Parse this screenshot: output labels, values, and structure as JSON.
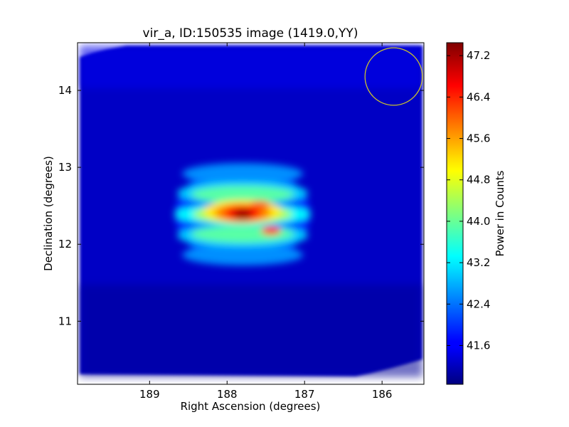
{
  "chart_data": {
    "type": "heatmap",
    "title": "vir_a, ID:150535 image (1419.0,YY)",
    "xlabel": "Right Ascension (degrees)",
    "ylabel": "Declination (degrees)",
    "xlim": [
      189.93,
      185.46
    ],
    "ylim": [
      10.18,
      14.62
    ],
    "x_ticks": [
      189,
      188,
      187,
      186
    ],
    "y_ticks": [
      11,
      12,
      13,
      14
    ],
    "colorbar": {
      "label": "Power in Counts",
      "colormap": "jet",
      "range": [
        40.85,
        47.45
      ],
      "ticks": [
        "41.6",
        "42.4",
        "43.2",
        "44.0",
        "44.8",
        "45.6",
        "46.4",
        "47.2"
      ]
    },
    "background_level": 41.3,
    "source_peak": {
      "ra": 187.8,
      "dec": 12.39,
      "value": 47.4
    },
    "beam_circle": {
      "ra": 185.85,
      "dec": 14.18,
      "radius_deg": 0.37,
      "color": "#c8c030"
    },
    "colors": {
      "low": "#00007f",
      "mid": "#7fff7f",
      "high": "#7f0000"
    }
  }
}
